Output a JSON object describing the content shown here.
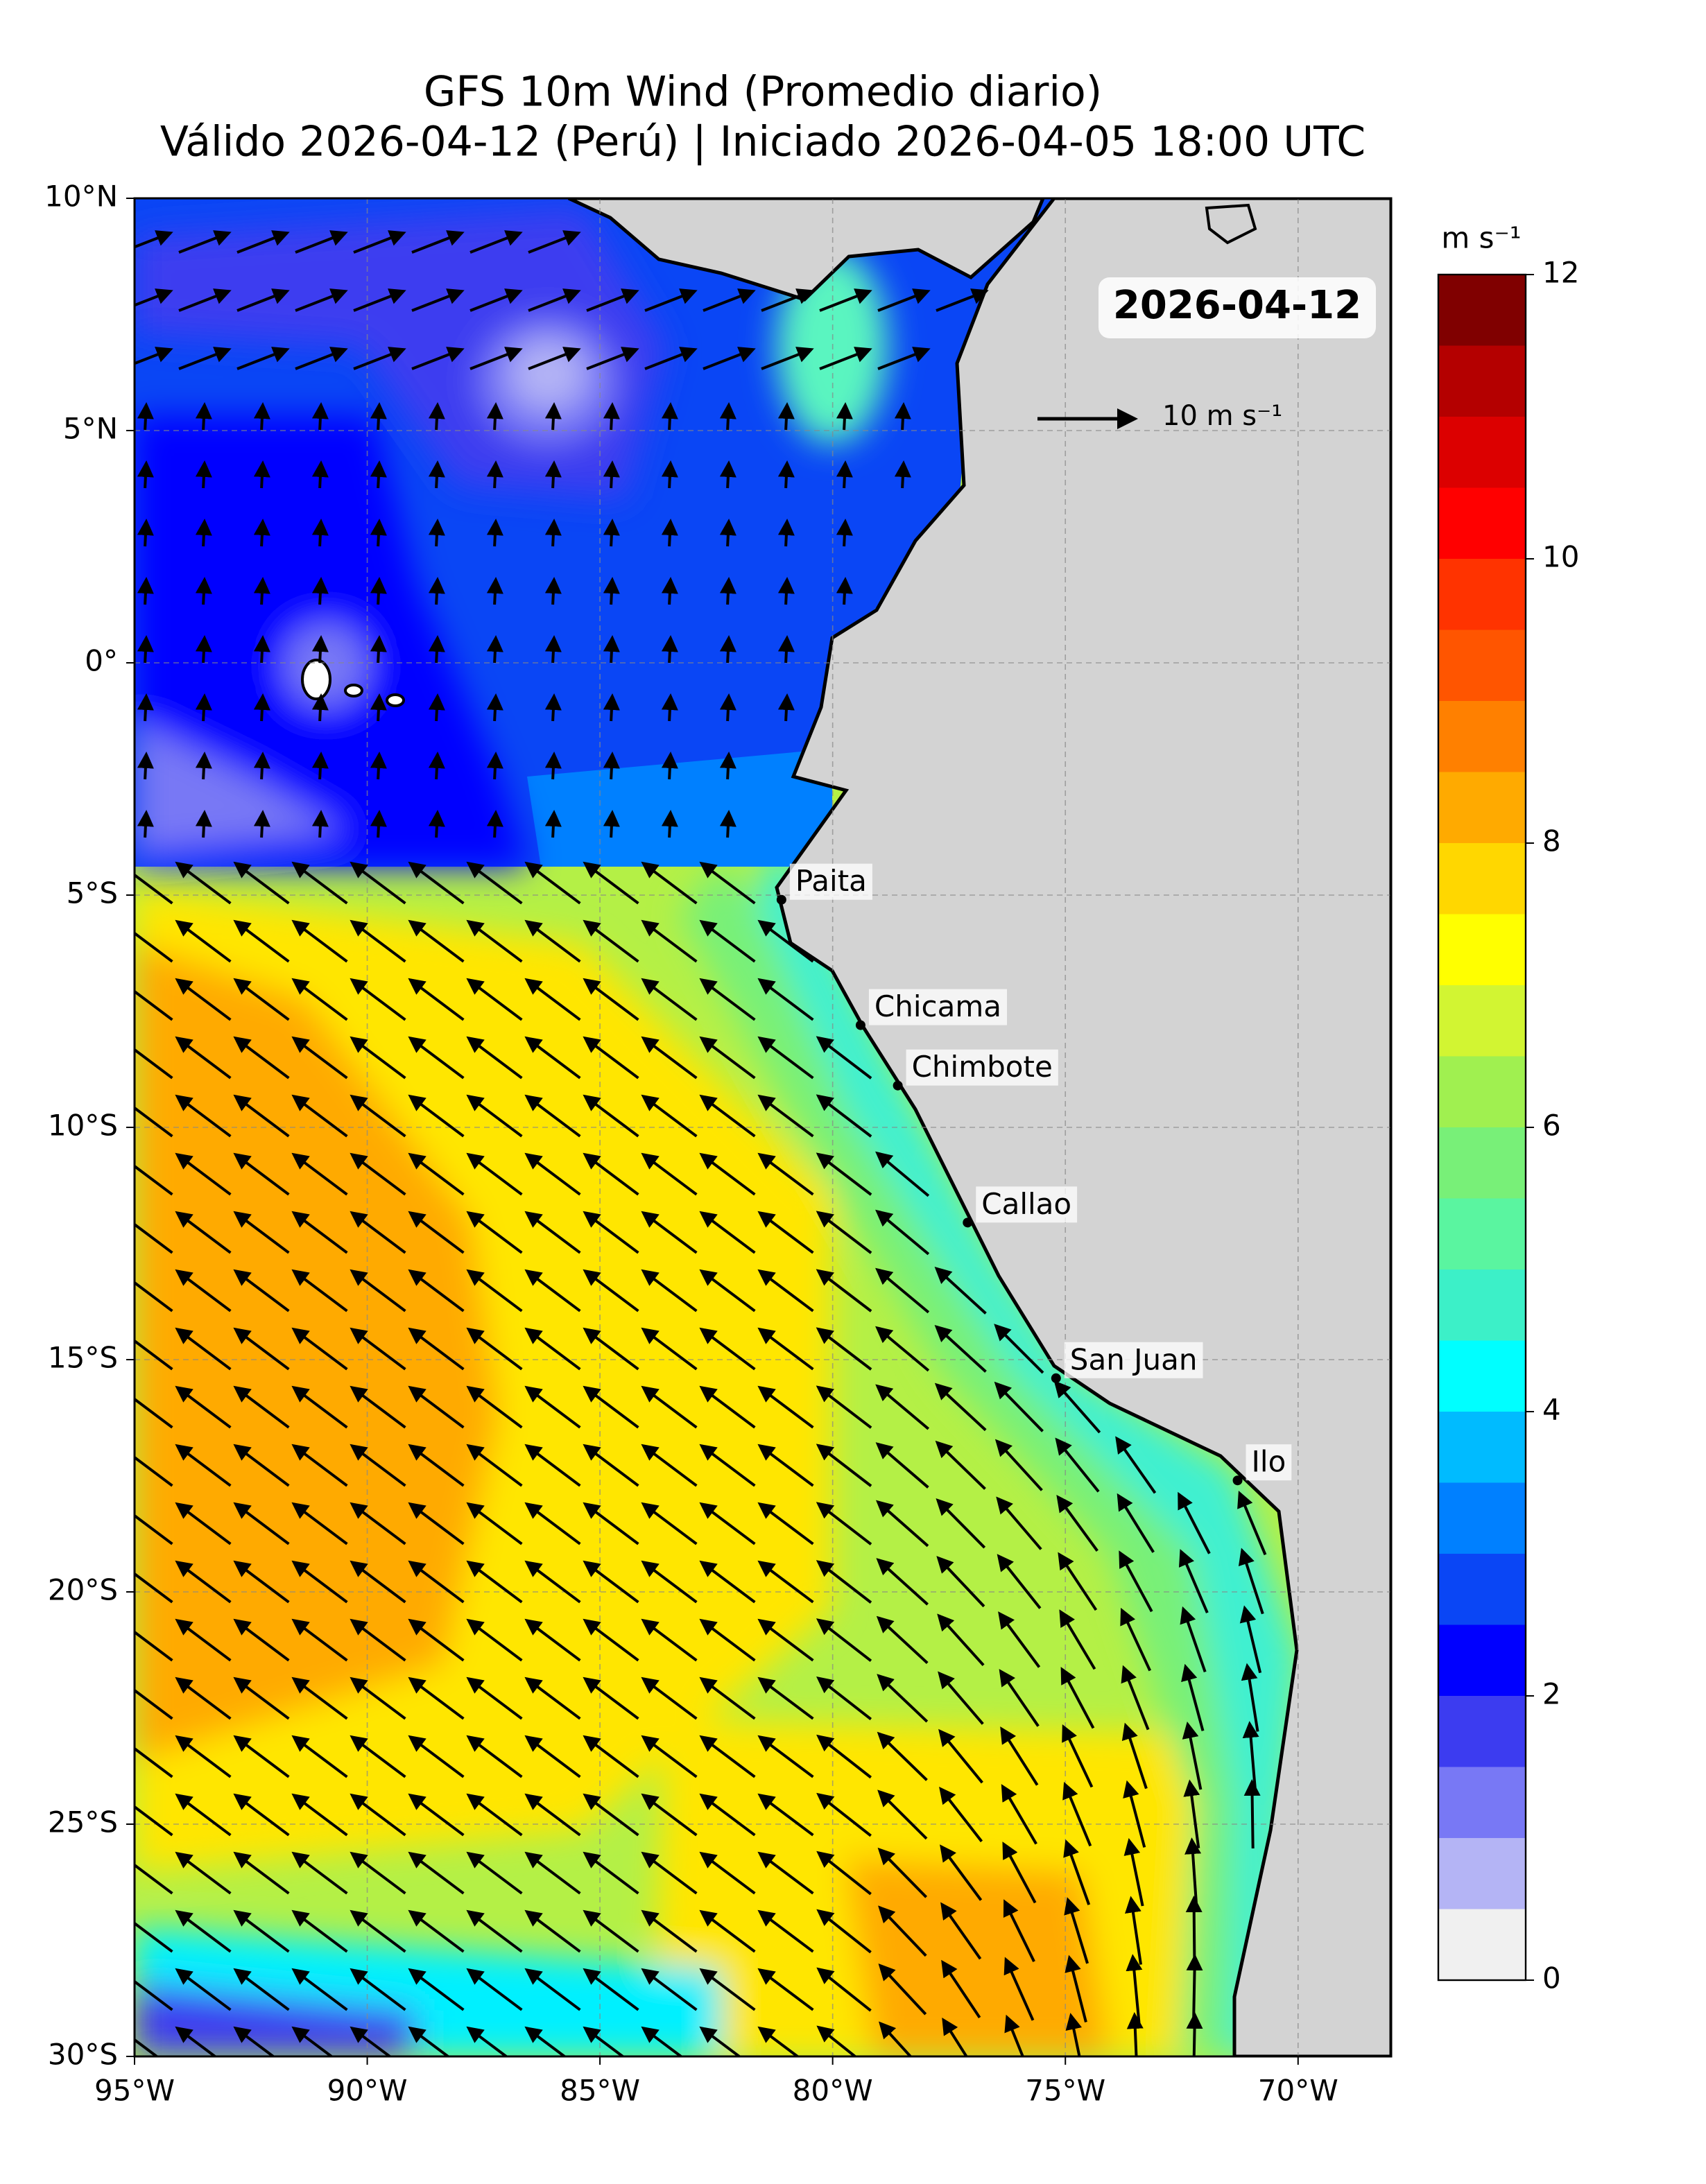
{
  "chart_data": {
    "type": "map",
    "title": "GFS 10m Wind (Promedio diario)",
    "subtitle": "Válido 2026-04-12 (Perú) | Iniciado 2026-04-05 18:00 UTC",
    "date_label": "2026-04-12",
    "reference_arrow_label": "10 m s⁻¹",
    "xlim": [
      -95,
      -68
    ],
    "ylim": [
      -30,
      10
    ],
    "xticks": [
      {
        "value": -95,
        "label": "95°W"
      },
      {
        "value": -90,
        "label": "90°W"
      },
      {
        "value": -85,
        "label": "85°W"
      },
      {
        "value": -80,
        "label": "80°W"
      },
      {
        "value": -75,
        "label": "75°W"
      },
      {
        "value": -70,
        "label": "70°W"
      }
    ],
    "yticks": [
      {
        "value": 10,
        "label": "10°N"
      },
      {
        "value": 5,
        "label": "5°N"
      },
      {
        "value": 0,
        "label": "0°"
      },
      {
        "value": -5,
        "label": "5°S"
      },
      {
        "value": -10,
        "label": "10°S"
      },
      {
        "value": -15,
        "label": "15°S"
      },
      {
        "value": -20,
        "label": "20°S"
      },
      {
        "value": -25,
        "label": "25°S"
      },
      {
        "value": -30,
        "label": "30°S"
      }
    ],
    "grid": true,
    "cities": [
      {
        "name": "Paita",
        "lon": -81.1,
        "lat": -5.1
      },
      {
        "name": "Chicama",
        "lon": -79.4,
        "lat": -7.8
      },
      {
        "name": "Chimbote",
        "lon": -78.6,
        "lat": -9.1
      },
      {
        "name": "Callao",
        "lon": -77.1,
        "lat": -12.05
      },
      {
        "name": "San Juan",
        "lon": -75.2,
        "lat": -15.4
      },
      {
        "name": "Ilo",
        "lon": -71.3,
        "lat": -17.6
      }
    ],
    "colorbar": {
      "label": "m s⁻¹",
      "levels": [
        0,
        0.5,
        1,
        1.5,
        2,
        2.5,
        3,
        3.5,
        4,
        4.5,
        5,
        5.5,
        6,
        6.5,
        7,
        7.5,
        8,
        8.5,
        9,
        9.5,
        10,
        10.5,
        11,
        11.5,
        12
      ],
      "colors": [
        "#f0f0f0",
        "#b4b4f5",
        "#7878f5",
        "#3c3cf0",
        "#0000ff",
        "#0a46f5",
        "#0080ff",
        "#00bbff",
        "#00ffff",
        "#3cf0c8",
        "#5af5a0",
        "#78f078",
        "#a0f050",
        "#d2f532",
        "#ffff00",
        "#ffd700",
        "#ffaa00",
        "#ff8000",
        "#ff5500",
        "#ff3300",
        "#ff0000",
        "#dc0000",
        "#b40000",
        "#800000"
      ],
      "ticks": [
        0,
        2,
        4,
        6,
        8,
        10,
        12
      ]
    }
  }
}
